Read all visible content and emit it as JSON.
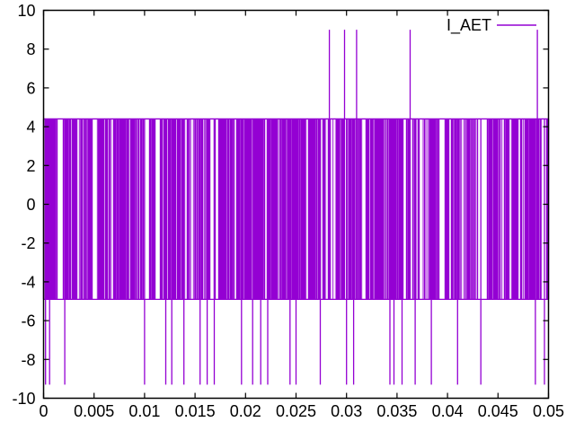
{
  "figure": {
    "background_color": "#ffffff",
    "frame_color": "#000000",
    "text_color": "#000000"
  },
  "legend": {
    "label": "I_AET",
    "position": "top-right"
  },
  "chart_data": {
    "type": "line",
    "title": "",
    "xlabel": "",
    "ylabel": "",
    "xlim": [
      0,
      0.05
    ],
    "ylim": [
      -10,
      10
    ],
    "x_ticks": [
      "0",
      "0.005",
      "0.01",
      "0.015",
      "0.02",
      "0.025",
      "0.03",
      "0.035",
      "0.04",
      "0.045",
      "0.05"
    ],
    "y_ticks": [
      "-10",
      "-8",
      "-6",
      "-4",
      "-2",
      "0",
      "2",
      "4",
      "6",
      "8",
      "10"
    ],
    "grid": false,
    "legend_position": "top-right",
    "series": [
      {
        "name": "I_AET",
        "color": "#9400d3",
        "waveform_type": "dense high-frequency square wave (chopped current), rendered as near-solid band",
        "band_high": 4.4,
        "band_low": -4.9,
        "spike_high": 9.0,
        "spike_low": -9.3,
        "up_spike_x": [
          0.0283,
          0.0298,
          0.031,
          0.0363,
          0.0489
        ],
        "down_spike_x": [
          0.0002,
          0.0006,
          0.0021,
          0.01,
          0.0121,
          0.0127,
          0.0139,
          0.0155,
          0.0162,
          0.0169,
          0.0196,
          0.0207,
          0.0215,
          0.0222,
          0.0244,
          0.025,
          0.0274,
          0.03,
          0.0307,
          0.0343,
          0.0347,
          0.0355,
          0.0368,
          0.0384,
          0.041,
          0.0433,
          0.0487,
          0.0496
        ]
      }
    ]
  }
}
